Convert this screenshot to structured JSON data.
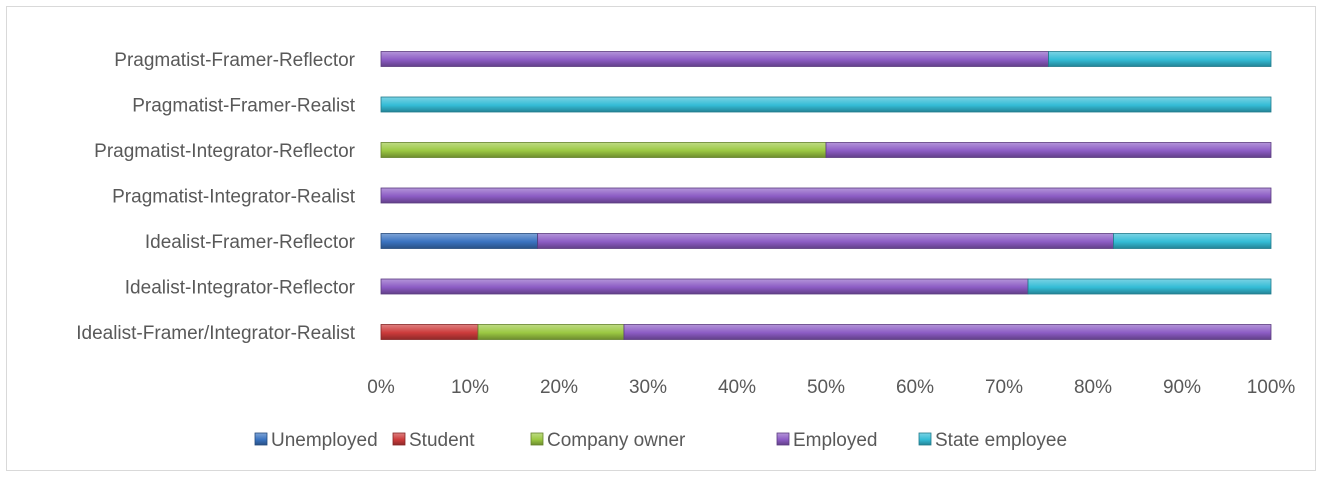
{
  "chart_data": {
    "type": "bar",
    "orientation": "horizontal",
    "stacked": "percent",
    "categories": [
      "Pragmatist-Framer-Reflector",
      "Pragmatist-Framer-Realist",
      "Pragmatist-Integrator-Reflector",
      "Pragmatist-Integrator-Realist",
      "Idealist-Framer-Reflector",
      "Idealist-Integrator-Reflector",
      "Idealist-Framer/Integrator-Realist"
    ],
    "series": [
      {
        "name": "Unemployed",
        "color": "#3a73c0",
        "values": [
          0,
          0,
          0,
          0,
          17.6,
          0,
          0
        ]
      },
      {
        "name": "Student",
        "color": "#cc3b3b",
        "values": [
          0,
          0,
          0,
          0,
          0,
          0,
          10.9
        ]
      },
      {
        "name": "Company owner",
        "color": "#9bc842",
        "values": [
          0,
          0,
          50,
          0,
          0,
          0,
          16.4
        ]
      },
      {
        "name": "Employed",
        "color": "#8c5cc4",
        "values": [
          75,
          0,
          50,
          100,
          64.7,
          72.7,
          72.7
        ]
      },
      {
        "name": "State employee",
        "color": "#34bcd6",
        "values": [
          25,
          100,
          0,
          0,
          17.7,
          27.3,
          0
        ]
      }
    ],
    "xlim": [
      0,
      100
    ],
    "xticks": [
      "0%",
      "10%",
      "20%",
      "30%",
      "40%",
      "50%",
      "60%",
      "70%",
      "80%",
      "90%",
      "100%"
    ],
    "title": "",
    "xlabel": "",
    "ylabel": "",
    "legend": "bottom",
    "grid": false
  }
}
